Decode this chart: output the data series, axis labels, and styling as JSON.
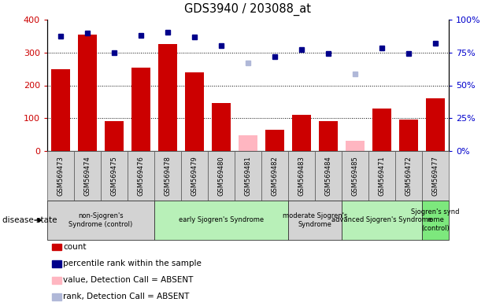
{
  "title": "GDS3940 / 203088_at",
  "samples": [
    "GSM569473",
    "GSM569474",
    "GSM569475",
    "GSM569476",
    "GSM569478",
    "GSM569479",
    "GSM569480",
    "GSM569481",
    "GSM569482",
    "GSM569483",
    "GSM569484",
    "GSM569485",
    "GSM569471",
    "GSM569472",
    "GSM569477"
  ],
  "bar_values": [
    250,
    355,
    90,
    255,
    325,
    240,
    145,
    null,
    65,
    110,
    90,
    null,
    130,
    95,
    160
  ],
  "bar_absent": [
    null,
    null,
    null,
    null,
    null,
    null,
    null,
    48,
    null,
    null,
    null,
    32,
    null,
    null,
    null
  ],
  "rank_dots_pct": [
    87.5,
    90,
    75,
    88,
    90.5,
    86.75,
    80,
    null,
    71.75,
    77,
    74.5,
    null,
    78.25,
    74.5,
    82
  ],
  "rank_absent_pct": [
    null,
    null,
    null,
    null,
    null,
    null,
    null,
    67,
    null,
    null,
    null,
    58.75,
    null,
    null,
    null
  ],
  "groups": [
    {
      "label": "non-Sjogren's\nSyndrome (control)",
      "start": 0,
      "end": 4,
      "color": "#d3d3d3"
    },
    {
      "label": "early Sjogren's Syndrome",
      "start": 4,
      "end": 9,
      "color": "#b8f0b8"
    },
    {
      "label": "moderate Sjogren's\nSyndrome",
      "start": 9,
      "end": 11,
      "color": "#d3d3d3"
    },
    {
      "label": "advanced Sjogren's Syndrome",
      "start": 11,
      "end": 14,
      "color": "#b8f0b8"
    },
    {
      "label": "Sjogren's synd\nrome\n(control)",
      "start": 14,
      "end": 15,
      "color": "#7de87d"
    }
  ],
  "ylim_left": [
    0,
    400
  ],
  "ylim_right": [
    0,
    100
  ],
  "yticks_left": [
    0,
    100,
    200,
    300,
    400
  ],
  "yticks_right": [
    0,
    25,
    50,
    75,
    100
  ],
  "ytick_labels_right": [
    "0%",
    "25%",
    "50%",
    "75%",
    "100%"
  ],
  "bar_color": "#cc0000",
  "bar_absent_color": "#ffb6c1",
  "dot_color": "#00008b",
  "dot_absent_color": "#b0b8d8",
  "grid_color": "#000000",
  "tick_label_color_left": "#cc0000",
  "tick_label_color_right": "#0000cc",
  "sample_bg": "#d3d3d3",
  "legend_items": [
    {
      "color": "#cc0000",
      "label": "count",
      "marker": "square"
    },
    {
      "color": "#00008b",
      "label": "percentile rank within the sample",
      "marker": "square"
    },
    {
      "color": "#ffb6c1",
      "label": "value, Detection Call = ABSENT",
      "marker": "square"
    },
    {
      "color": "#b0b8d8",
      "label": "rank, Detection Call = ABSENT",
      "marker": "square"
    }
  ]
}
